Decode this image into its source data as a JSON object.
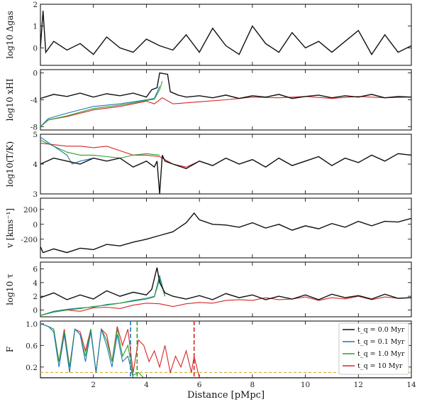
{
  "chart_data": {
    "type": "line",
    "xlabel": "Distance [pMpc]",
    "xlim": [
      0,
      14
    ],
    "xticks": [
      "2",
      "4",
      "6",
      "8",
      "10",
      "12",
      "14"
    ],
    "xtick_values": [
      2,
      4,
      6,
      8,
      10,
      12,
      14
    ],
    "colors": {
      "t0": "#111111",
      "t01": "#1f77b4",
      "t1": "#2ca02c",
      "t10": "#d62728",
      "thresh": "#d4a017"
    },
    "legend": {
      "placement": "bottom-right",
      "entries": [
        {
          "label": "t_q = 0.0 Myr",
          "color": "#111111"
        },
        {
          "label": "t_q = 0.1 Myr",
          "color": "#1f77b4"
        },
        {
          "label": "t_q = 1.0 Myr",
          "color": "#2ca02c"
        },
        {
          "label": "t_q = 10 Myr",
          "color": "#d62728"
        }
      ]
    },
    "panels": [
      {
        "id": "delta",
        "ylabel": "log10 Δgas",
        "ylim": [
          -0.8,
          2
        ],
        "yticks": [
          0,
          1,
          2
        ],
        "ytick_labels": [
          "0",
          "1",
          "2"
        ],
        "series": [
          {
            "key": "t0",
            "x": [
              0,
              0.1,
              0.2,
              0.5,
              1,
              1.5,
              2,
              2.5,
              3,
              3.5,
              4,
              4.5,
              5,
              5.5,
              6,
              6.5,
              7,
              7.5,
              8,
              8.5,
              9,
              9.5,
              10,
              10.5,
              11,
              11.5,
              12,
              12.5,
              13,
              13.5,
              14
            ],
            "y": [
              0,
              1.7,
              -0.2,
              0.3,
              -0.1,
              0.2,
              -0.3,
              0.5,
              0,
              -0.2,
              0.4,
              0.1,
              -0.1,
              0.6,
              -0.2,
              0.9,
              0.1,
              -0.3,
              1.0,
              0.2,
              -0.2,
              0.7,
              0,
              0.3,
              -0.2,
              0.3,
              0.8,
              -0.3,
              0.6,
              -0.2,
              0.1
            ]
          }
        ]
      },
      {
        "id": "xhi",
        "ylabel": "log10 xHI",
        "ylim": [
          -8.5,
          0.5
        ],
        "yticks": [
          -8,
          -4,
          0
        ],
        "ytick_labels": [
          "-8",
          "-4",
          "0"
        ],
        "series": [
          {
            "key": "t10",
            "x": [
              0,
              0.3,
              1,
              2,
              3,
              4,
              4.3,
              4.6,
              5,
              6,
              7,
              8,
              9,
              10,
              11,
              12,
              13,
              14
            ],
            "y": [
              -8,
              -7,
              -6.5,
              -5.5,
              -5,
              -4.2,
              -4.6,
              -3.7,
              -4.6,
              -4.3,
              -4,
              -3.6,
              -3.7,
              -3.5,
              -3.8,
              -3.5,
              -3.7,
              -3.6
            ]
          },
          {
            "key": "t01",
            "x": [
              0,
              0.3,
              1,
              2,
              3,
              4,
              4.3,
              4.5
            ],
            "y": [
              -8,
              -6.8,
              -6,
              -5,
              -4.6,
              -4,
              -3.8,
              -2
            ]
          },
          {
            "key": "t1",
            "x": [
              0,
              0.3,
              1,
              2,
              3,
              4,
              4.3,
              4.5,
              4.6
            ],
            "y": [
              -8,
              -7,
              -6.4,
              -5.3,
              -4.8,
              -4.1,
              -3.9,
              -2.5,
              -1.2
            ]
          },
          {
            "key": "t0",
            "x": [
              0,
              0.5,
              1,
              1.5,
              2,
              2.5,
              3,
              3.5,
              4,
              4.2,
              4.4,
              4.5,
              4.8,
              4.9,
              5.2,
              5.5,
              6,
              6.5,
              7,
              7.5,
              8,
              8.5,
              9,
              9.5,
              10,
              10.5,
              11,
              11.5,
              12,
              12.5,
              13,
              13.5,
              14
            ],
            "y": [
              -3.8,
              -3.2,
              -3.5,
              -3.0,
              -3.6,
              -3.1,
              -3.4,
              -3.0,
              -3.6,
              -2.5,
              -2.2,
              0,
              -0.2,
              -2.8,
              -3.3,
              -3.6,
              -3.4,
              -3.7,
              -3.3,
              -3.8,
              -3.4,
              -3.6,
              -3.2,
              -3.8,
              -3.5,
              -3.3,
              -3.7,
              -3.4,
              -3.6,
              -3.2,
              -3.7,
              -3.5,
              -3.6
            ]
          }
        ]
      },
      {
        "id": "temp",
        "ylabel": "log10(T/K)",
        "ylim": [
          3,
          5
        ],
        "yticks": [
          3,
          4,
          5
        ],
        "ytick_labels": [
          "3",
          "4",
          "5"
        ],
        "series": [
          {
            "key": "t10",
            "x": [
              0,
              0.5,
              1,
              1.5,
              2,
              2.5,
              3,
              3.5,
              4,
              4.5,
              5,
              5.5,
              6,
              6.5,
              7,
              7.5,
              8,
              8.5,
              9,
              9.5,
              10,
              10.5,
              11,
              11.5,
              12,
              12.5,
              13,
              13.5,
              14
            ],
            "y": [
              4.7,
              4.65,
              4.6,
              4.6,
              4.55,
              4.6,
              4.45,
              4.3,
              4.3,
              4.25,
              4.0,
              3.9,
              4.1,
              3.95,
              4.2,
              4.0,
              4.15,
              3.9,
              4.2,
              3.95,
              4.1,
              4.25,
              3.95,
              4.2,
              4.05,
              4.3,
              4.1,
              4.35,
              4.3
            ]
          },
          {
            "key": "t1",
            "x": [
              0,
              0.5,
              1,
              1.5,
              2,
              2.5,
              3,
              3.5,
              4,
              4.5
            ],
            "y": [
              4.8,
              4.6,
              4.4,
              4.3,
              4.3,
              4.25,
              4.2,
              4.3,
              4.35,
              4.3
            ]
          },
          {
            "key": "t01",
            "x": [
              0,
              0.5,
              1,
              1.2,
              1.5,
              2
            ],
            "y": [
              4.9,
              4.6,
              4.3,
              4.0,
              4.1,
              4.2
            ]
          },
          {
            "key": "t0",
            "x": [
              0,
              0.5,
              1,
              1.5,
              2,
              2.5,
              3,
              3.5,
              4,
              4.3,
              4.4,
              4.5,
              4.6,
              4.7,
              5,
              5.5,
              6,
              6.5,
              7,
              7.5,
              8,
              8.5,
              9,
              9.5,
              10,
              10.5,
              11,
              11.5,
              12,
              12.5,
              13,
              13.5,
              14
            ],
            "y": [
              4.0,
              4.2,
              4.1,
              4.0,
              4.2,
              4.1,
              4.2,
              3.9,
              4.1,
              3.9,
              4.1,
              3.0,
              4.3,
              4.1,
              4.0,
              3.85,
              4.1,
              3.95,
              4.2,
              4.0,
              4.15,
              3.9,
              4.2,
              3.95,
              4.1,
              4.25,
              3.95,
              4.2,
              4.05,
              4.3,
              4.1,
              4.35,
              4.3
            ]
          }
        ]
      },
      {
        "id": "vel",
        "ylabel": "v [kms⁻¹]",
        "ylim": [
          -450,
          350
        ],
        "yticks": [
          -200,
          0,
          200
        ],
        "ytick_labels": [
          "-200",
          "0",
          "200"
        ],
        "series": [
          {
            "key": "t0",
            "x": [
              0,
              0.1,
              0.5,
              1,
              1.5,
              2,
              2.5,
              3,
              3.5,
              4,
              4.5,
              5,
              5.5,
              5.8,
              6,
              6.5,
              7,
              7.5,
              8,
              8.5,
              9,
              9.5,
              10,
              10.5,
              11,
              11.5,
              12,
              12.5,
              13,
              13.5,
              14
            ],
            "y": [
              -300,
              -380,
              -330,
              -380,
              -320,
              -340,
              -270,
              -290,
              -240,
              -200,
              -150,
              -100,
              20,
              150,
              60,
              0,
              -10,
              -40,
              20,
              -50,
              0,
              -80,
              -20,
              -60,
              10,
              -40,
              40,
              -20,
              40,
              30,
              80
            ]
          }
        ]
      },
      {
        "id": "tau",
        "ylabel": "log10 τ",
        "ylim": [
          -1,
          7
        ],
        "yticks": [
          0,
          2,
          4,
          6
        ],
        "ytick_labels": [
          "0",
          "2",
          "4",
          "6"
        ],
        "series": [
          {
            "key": "t10",
            "x": [
              0,
              0.5,
              1,
              1.5,
              2,
              2.5,
              3,
              3.5,
              4,
              4.5,
              5,
              5.5,
              6,
              6.5,
              7,
              7.5,
              8,
              8.5,
              9,
              9.5,
              10,
              10.5,
              11,
              11.5,
              12,
              12.5,
              13,
              13.5,
              14
            ],
            "y": [
              -0.8,
              -0.3,
              0.0,
              -0.2,
              0.3,
              0.4,
              0.2,
              0.7,
              1.0,
              0.9,
              0.5,
              0.9,
              1.1,
              1.0,
              1.4,
              1.5,
              1.4,
              1.8,
              1.5,
              1.6,
              1.9,
              1.4,
              1.8,
              1.6,
              2.0,
              1.5,
              1.9,
              1.7,
              1.8
            ]
          },
          {
            "key": "t01",
            "x": [
              0,
              0.5,
              1,
              1.5,
              2,
              2.5,
              3,
              3.5,
              4,
              4.3,
              4.5,
              4.7
            ],
            "y": [
              -0.8,
              -0.2,
              0.1,
              0.3,
              0.4,
              0.8,
              1.0,
              1.4,
              1.7,
              2.0,
              5.0,
              2.0
            ]
          },
          {
            "key": "t1",
            "x": [
              0,
              0.5,
              1,
              1.5,
              2,
              2.5,
              3,
              3.5,
              4,
              4.3,
              4.5,
              4.7
            ],
            "y": [
              -0.8,
              -0.3,
              0.0,
              0.2,
              0.5,
              0.7,
              1.0,
              1.3,
              1.6,
              1.9,
              4.5,
              2.0
            ]
          },
          {
            "key": "t0",
            "x": [
              0,
              0.5,
              1,
              1.5,
              2,
              2.5,
              3,
              3.5,
              4,
              4.2,
              4.4,
              4.5,
              4.7,
              5,
              5.5,
              6,
              6.5,
              7,
              7.5,
              8,
              8.5,
              9,
              9.5,
              10,
              10.5,
              11,
              11.5,
              12,
              12.5,
              13,
              13.5,
              14
            ],
            "y": [
              1.8,
              2.5,
              1.5,
              2.2,
              1.6,
              2.8,
              2.0,
              2.6,
              2.2,
              3.0,
              6.2,
              4.0,
              2.5,
              2.0,
              1.6,
              2.1,
              1.5,
              2.4,
              1.8,
              2.2,
              1.5,
              2.0,
              1.6,
              2.2,
              1.5,
              2.3,
              1.8,
              2.1,
              1.6,
              2.3,
              1.7,
              1.8
            ]
          }
        ]
      },
      {
        "id": "flux",
        "ylabel": "F",
        "ylim": [
          0,
          1.05
        ],
        "yticks": [
          0.2,
          0.6,
          1.0
        ],
        "ytick_labels": [
          "0.2",
          "0.6",
          "1.0"
        ],
        "threshold": 0.1,
        "vlines": [
          {
            "key": "t01",
            "x": 3.4
          },
          {
            "key": "t1",
            "x": 3.65
          },
          {
            "key": "t10",
            "x": 5.8
          }
        ],
        "series": [
          {
            "key": "t10",
            "x": [
              0,
              0.3,
              0.5,
              0.7,
              0.9,
              1.1,
              1.3,
              1.5,
              1.7,
              1.9,
              2.1,
              2.3,
              2.5,
              2.7,
              2.9,
              3.1,
              3.3,
              3.5,
              3.7,
              3.9,
              4.1,
              4.3,
              4.5,
              4.7,
              4.9,
              5.1,
              5.3,
              5.5,
              5.7,
              5.8,
              6.0,
              6.3,
              6.8
            ],
            "y": [
              1.0,
              0.95,
              0.9,
              0.3,
              0.9,
              0.2,
              0.9,
              0.85,
              0.5,
              0.9,
              0.1,
              0.9,
              0.8,
              0.3,
              0.95,
              0.6,
              0.9,
              0.1,
              0.7,
              0.6,
              0.3,
              0.5,
              0.2,
              0.6,
              0.1,
              0.4,
              0.2,
              0.5,
              0.1,
              0.4,
              0.0,
              0.0,
              0.0
            ]
          },
          {
            "key": "t1",
            "x": [
              0,
              0.3,
              0.5,
              0.7,
              0.9,
              1.1,
              1.3,
              1.5,
              1.7,
              1.9,
              2.1,
              2.3,
              2.5,
              2.7,
              2.9,
              3.1,
              3.3,
              3.5,
              3.7,
              3.9
            ],
            "y": [
              1.0,
              0.95,
              0.9,
              0.3,
              0.85,
              0.2,
              0.9,
              0.8,
              0.4,
              0.9,
              0.1,
              0.9,
              0.7,
              0.3,
              0.9,
              0.4,
              0.6,
              0.05,
              0.1,
              0.0
            ]
          },
          {
            "key": "t01",
            "x": [
              0,
              0.3,
              0.5,
              0.7,
              0.9,
              1.1,
              1.3,
              1.5,
              1.7,
              1.9,
              2.1,
              2.3,
              2.5,
              2.7,
              2.9,
              3.1,
              3.3,
              3.5,
              3.7
            ],
            "y": [
              1.0,
              0.95,
              0.85,
              0.2,
              0.8,
              0.1,
              0.9,
              0.8,
              0.3,
              0.85,
              0.1,
              0.9,
              0.6,
              0.2,
              0.8,
              0.3,
              0.4,
              0.0,
              0.0
            ]
          },
          {
            "key": "t0",
            "x": [
              0,
              3.5,
              3.6,
              4.0,
              4.5,
              5,
              5.5,
              6,
              6.5,
              7,
              8,
              9,
              10,
              11,
              12,
              13,
              14
            ],
            "y": [
              0,
              0,
              0,
              0,
              0,
              0,
              0,
              0,
              0,
              0,
              0,
              0,
              0,
              0,
              0,
              0,
              0
            ]
          }
        ]
      }
    ]
  }
}
